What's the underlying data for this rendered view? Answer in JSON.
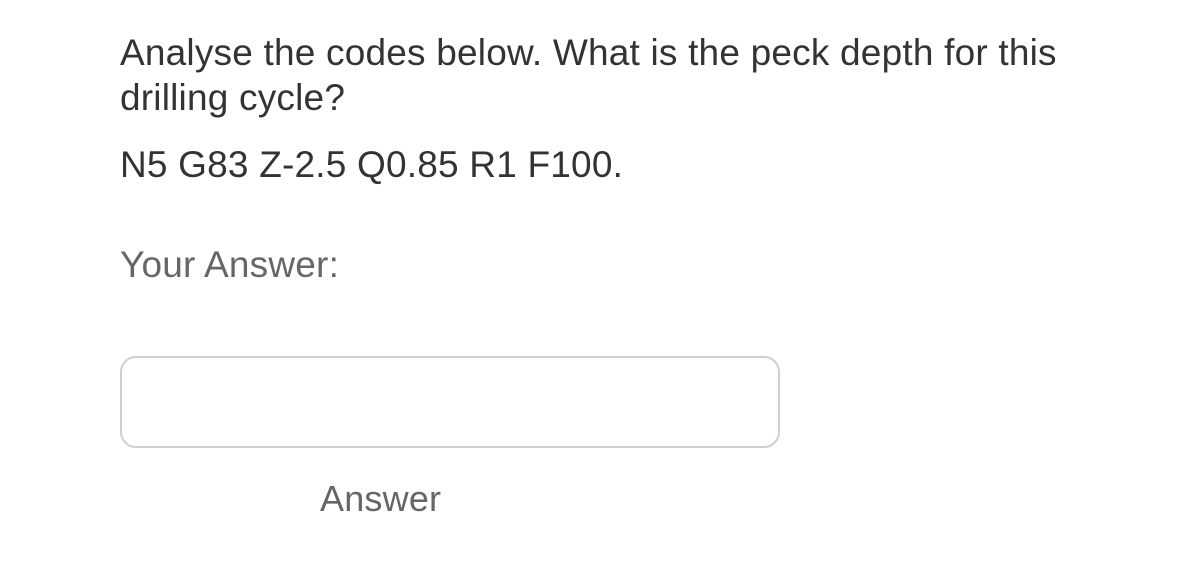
{
  "question": {
    "prompt": "Analyse the codes below. What is the peck depth for this drilling cycle?",
    "code_line": "N5 G83 Z-2.5 Q0.85 R1 F100.",
    "your_answer_label": "Your Answer:",
    "input_value": "",
    "answer_button_label": "Answer"
  },
  "colors": {
    "text_primary": "#333333",
    "text_secondary": "#666666",
    "input_border": "#cfcfcf",
    "background": "#ffffff"
  },
  "typography": {
    "question_fontsize": 37,
    "label_fontsize": 37,
    "button_fontsize": 36
  }
}
